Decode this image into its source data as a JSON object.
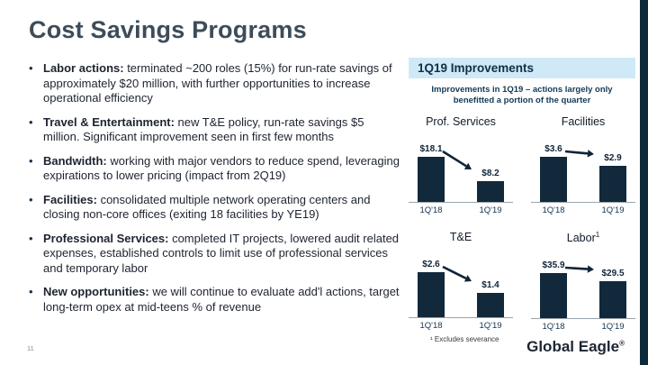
{
  "slide": {
    "title": "Cost Savings Programs",
    "page_number": "11",
    "bullet_char": "•"
  },
  "bullets": [
    {
      "lead": "Labor actions:",
      "text": " terminated ~200 roles (15%) for run-rate savings of approximately $20 million, with further opportunities to increase operational efficiency"
    },
    {
      "lead": "Travel & Entertainment:",
      "text": " new T&E policy, run-rate savings $5 million. Significant improvement seen in first few months"
    },
    {
      "lead": "Bandwidth:",
      "text": " working with major vendors to reduce spend, leveraging expirations to lower pricing (impact from 2Q19)"
    },
    {
      "lead": "Facilities:",
      "text": " consolidated multiple network operating centers and closing non-core offices (exiting 18 facilities by YE19)"
    },
    {
      "lead": "Professional Services:",
      "text": " completed IT projects, lowered audit related expenses, established controls to limit use of professional services and temporary labor"
    },
    {
      "lead": "New opportunities:",
      "text": " we will continue to evaluate add'l actions, target long-term opex at mid-teens % of revenue"
    }
  ],
  "panel": {
    "header": "1Q19 Improvements",
    "subtitle": "Improvements in 1Q19 – actions largely only benefitted a portion of the quarter",
    "footnote": "¹ Excludes severance"
  },
  "chart_data": [
    {
      "type": "bar",
      "title": "Prof. Services",
      "categories": [
        "1Q'18",
        "1Q'19"
      ],
      "values": [
        18.1,
        8.2
      ],
      "labels": [
        "$18.1",
        "$8.2"
      ]
    },
    {
      "type": "bar",
      "title": "Facilities",
      "categories": [
        "1Q'18",
        "1Q'19"
      ],
      "values": [
        3.6,
        2.9
      ],
      "labels": [
        "$3.6",
        "$2.9"
      ]
    },
    {
      "type": "bar",
      "title": "T&E",
      "categories": [
        "1Q'18",
        "1Q'19"
      ],
      "values": [
        2.6,
        1.4
      ],
      "labels": [
        "$2.6",
        "$1.4"
      ]
    },
    {
      "type": "bar",
      "title": "Labor",
      "title_sup": "1",
      "categories": [
        "1Q'18",
        "1Q'19"
      ],
      "values": [
        35.9,
        29.5
      ],
      "labels": [
        "$35.9",
        "$29.5"
      ]
    }
  ],
  "logo": {
    "text": "Global Eagle",
    "reg": "®"
  },
  "colors": {
    "bar": "#12293b",
    "arrow": "#0f2438",
    "header_bg": "#cfe9f6",
    "strip": "#0d2a3a"
  }
}
